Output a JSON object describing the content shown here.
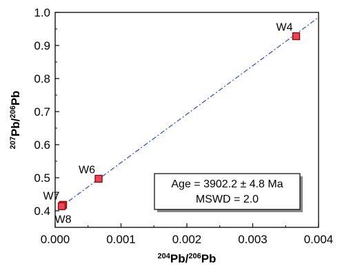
{
  "chart_data": {
    "type": "scatter",
    "title": "",
    "xlabel": {
      "parts": [
        {
          "text": "204",
          "sup": true
        },
        {
          "text": "Pb/",
          "sup": false
        },
        {
          "text": "206",
          "sup": true
        },
        {
          "text": "Pb",
          "sup": false
        }
      ]
    },
    "ylabel": {
      "parts": [
        {
          "text": "207",
          "sup": true
        },
        {
          "text": "Pb/",
          "sup": false
        },
        {
          "text": "206",
          "sup": true
        },
        {
          "text": "Pb",
          "sup": false
        }
      ]
    },
    "xlim": [
      0.0,
      0.004
    ],
    "ylim": [
      0.35,
      1.0
    ],
    "x_ticks": [
      "0.000",
      "0.001",
      "0.002",
      "0.003",
      "0.004"
    ],
    "y_ticks": [
      "0.4",
      "0.5",
      "0.6",
      "0.7",
      "0.8",
      "0.9",
      "1.0"
    ],
    "x_tick_values": [
      0.0,
      0.001,
      0.002,
      0.003,
      0.004
    ],
    "y_tick_values": [
      0.4,
      0.5,
      0.6,
      0.7,
      0.8,
      0.9,
      1.0
    ],
    "grid": false,
    "points": [
      {
        "label": "W4",
        "x": 0.00366,
        "y": 0.928,
        "label_pos": "above-left"
      },
      {
        "label": "W6",
        "x": 0.00066,
        "y": 0.497,
        "label_pos": "above-left"
      },
      {
        "label": "W7",
        "x": 0.00012,
        "y": 0.418,
        "label_pos": "above-left"
      },
      {
        "label": "W8",
        "x": 0.0001,
        "y": 0.414,
        "label_pos": "below"
      }
    ],
    "regression_line": {
      "x": [
        8e-05,
        0.004
      ],
      "y": [
        0.411,
        0.985
      ],
      "style": "dash-dot",
      "color": "#3355dd"
    },
    "annotation": {
      "lines": [
        "Age = 3902.2 ± 4.8 Ma",
        "MSWD = 2.0"
      ],
      "placement": "bottom-right"
    },
    "colors": {
      "point_fill": "#ee4455",
      "point_edge": "#8b0000",
      "line": "#3355dd",
      "axis": "#000000"
    }
  }
}
